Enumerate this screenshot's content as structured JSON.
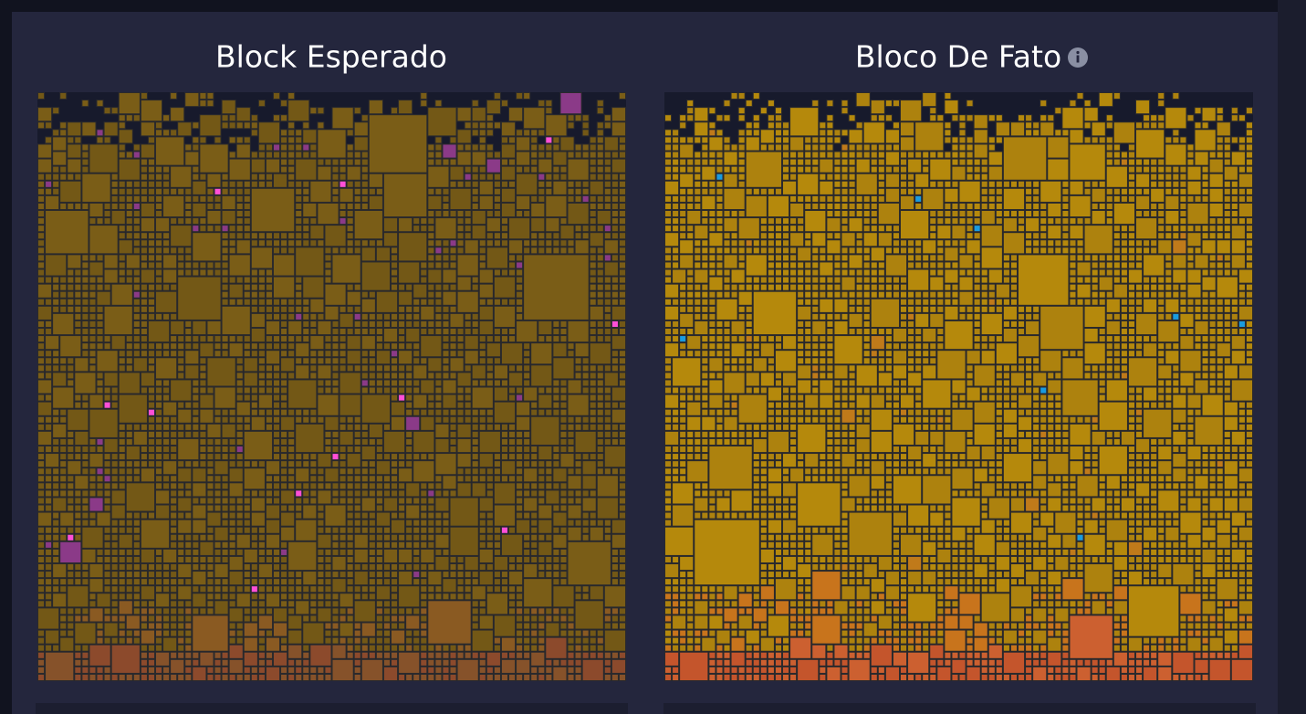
{
  "left_panel": {
    "title": "Block Esperado"
  },
  "right_panel": {
    "title": "Bloco De Fato"
  }
}
